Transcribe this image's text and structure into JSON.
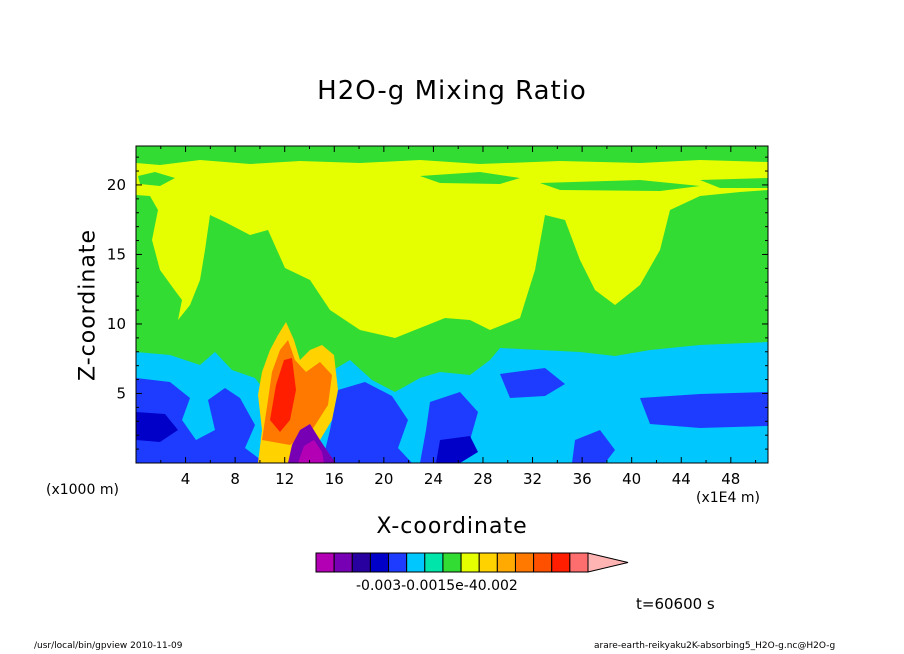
{
  "chart_data": {
    "type": "heatmap",
    "title": "H2O-g Mixing Ratio",
    "xlabel": "X-coordinate",
    "ylabel": "Z-coordinate",
    "x_unit_left": "(x1000 m)",
    "x_unit_right": "(x1E4 m)",
    "xticks": [
      "4",
      "8",
      "12",
      "16",
      "20",
      "24",
      "28",
      "32",
      "36",
      "40",
      "44",
      "48"
    ],
    "xtick_values": [
      4,
      8,
      12,
      16,
      20,
      24,
      28,
      32,
      36,
      40,
      44,
      48
    ],
    "yticks": [
      "5",
      "10",
      "15",
      "20"
    ],
    "ytick_values": [
      5,
      10,
      15,
      20
    ],
    "xlim": [
      0,
      51
    ],
    "ylim": [
      0,
      22.8
    ],
    "time_label": "t=60600 s",
    "colorbar": {
      "colors": [
        "#b400b4",
        "#7800b4",
        "#2800a0",
        "#0000c8",
        "#1e3cff",
        "#00c8ff",
        "#00e6aa",
        "#32dc32",
        "#e6ff00",
        "#ffd200",
        "#ffaa00",
        "#ff7800",
        "#ff5000",
        "#ff1e00",
        "#ff6e6e",
        "#ffb4b4"
      ],
      "labels_text": "-0.003-0.0015e-40.002"
    },
    "footer_left": "/usr/local/bin/gpview   2010-11-09",
    "footer_right": "arare-earth-reikyaku2K-absorbing5_H2O-g.nc@H2O-g"
  }
}
